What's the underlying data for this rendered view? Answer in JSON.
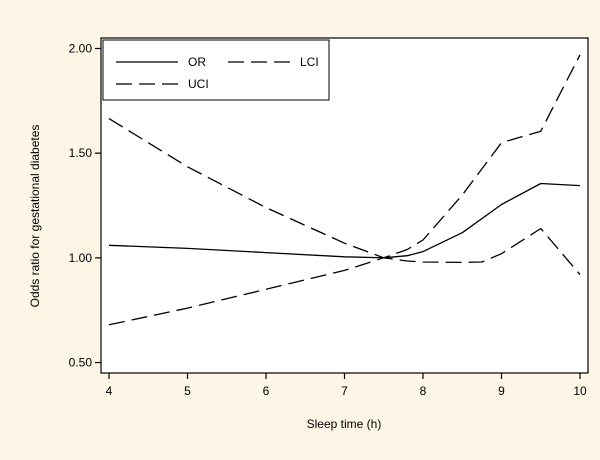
{
  "colors": {
    "background": "#fdf5e6",
    "plot_area": "#ffffff",
    "line": "#000000"
  },
  "chart_data": {
    "type": "line",
    "xlabel": "Sleep time (h)",
    "ylabel": "Odds ratio for gestational diabetes",
    "xlim": [
      4,
      10
    ],
    "ylim": [
      0.45,
      2.05
    ],
    "x_ticks": [
      4,
      5,
      6,
      7,
      8,
      9,
      10
    ],
    "x_tick_labels": [
      "4",
      "5",
      "6",
      "7",
      "8",
      "9",
      "10"
    ],
    "y_ticks": [
      0.5,
      1.0,
      1.5,
      2.0
    ],
    "y_tick_labels": [
      "0.50",
      "1.00",
      "1.50",
      "2.00"
    ],
    "grid": false,
    "legend_position": "top-left",
    "series": [
      {
        "name": "OR",
        "style": "solid",
        "x": [
          4,
          5,
          6,
          7,
          7.5,
          7.8,
          8,
          8.5,
          9,
          9.5,
          10
        ],
        "y": [
          1.06,
          1.045,
          1.025,
          1.005,
          1.0,
          1.01,
          1.03,
          1.12,
          1.255,
          1.355,
          1.345
        ]
      },
      {
        "name": "LCI",
        "style": "dashed",
        "x": [
          4,
          5,
          6,
          7,
          7.5,
          7.8,
          8,
          8.5,
          8.75,
          9,
          9.5,
          10
        ],
        "y": [
          0.68,
          0.76,
          0.85,
          0.94,
          1.0,
          0.985,
          0.98,
          0.978,
          0.98,
          1.02,
          1.14,
          0.92
        ]
      },
      {
        "name": "UCI",
        "style": "dashed",
        "x": [
          4,
          5,
          6,
          7,
          7.5,
          7.8,
          8,
          8.5,
          9,
          9.5,
          10
        ],
        "y": [
          1.665,
          1.435,
          1.24,
          1.07,
          1.0,
          1.04,
          1.085,
          1.3,
          1.55,
          1.605,
          1.97
        ]
      }
    ]
  }
}
